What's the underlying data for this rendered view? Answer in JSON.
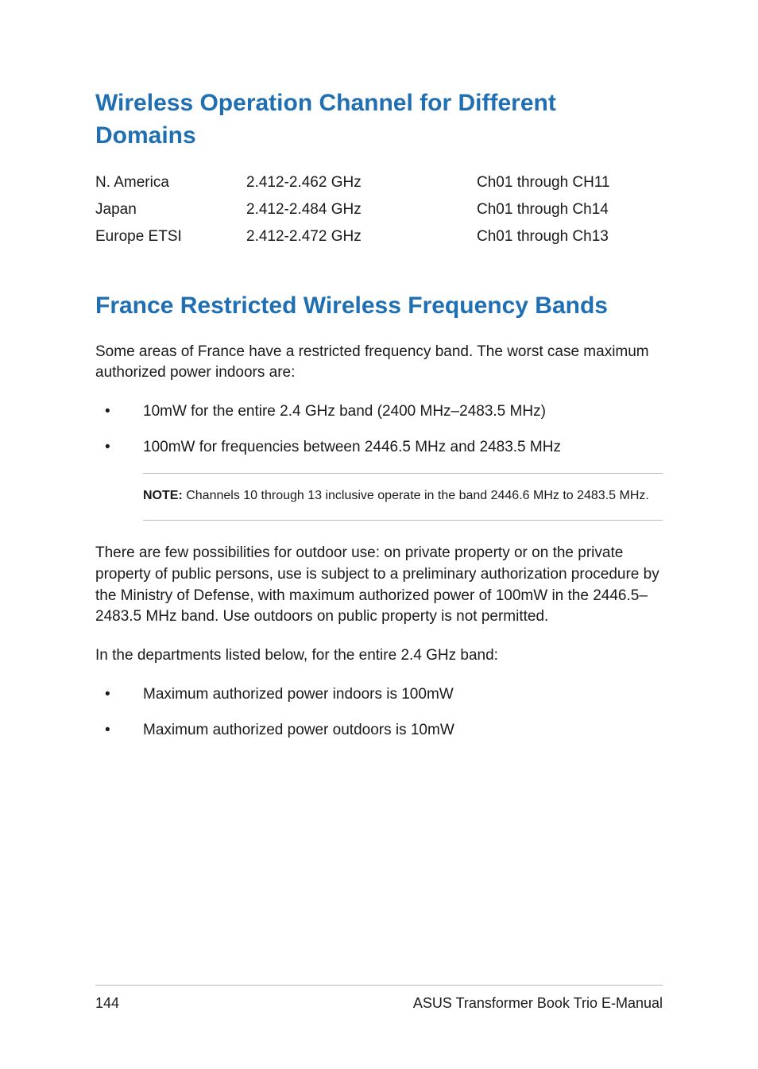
{
  "headings": {
    "h1a": "Wireless Operation Channel for Different Domains",
    "h1b": "France Restricted Wireless Frequency Bands"
  },
  "domainTable": {
    "rows": [
      {
        "region": "N. America",
        "freq": "2.412-2.462 GHz",
        "channels": "Ch01 through CH11"
      },
      {
        "region": "Japan",
        "freq": "2.412-2.484 GHz",
        "channels": "Ch01 through Ch14"
      },
      {
        "region": "Europe ETSI",
        "freq": "2.412-2.472 GHz",
        "channels": "Ch01 through Ch13"
      }
    ]
  },
  "france": {
    "intro": "Some areas of France have a restricted frequency band. The worst case maximum authorized power indoors are:",
    "bullets1": [
      "10mW for the entire 2.4 GHz band (2400 MHz–2483.5 MHz)",
      "100mW for frequencies between 2446.5 MHz and 2483.5 MHz"
    ],
    "noteLabel": "NOTE:",
    "noteText": " Channels 10 through 13 inclusive operate in the band 2446.6 MHz to 2483.5 MHz.",
    "para2": "There are few possibilities for outdoor use: on private property or on the private property of public persons, use is subject to a preliminary authorization procedure by the Ministry of Defense, with maximum authorized power of 100mW in the 2446.5–2483.5 MHz band. Use outdoors on public property is not permitted.",
    "para3": "In the departments listed below, for the entire 2.4 GHz band:",
    "bullets2": [
      "Maximum authorized power indoors is 100mW",
      "Maximum authorized power outdoors is 10mW"
    ]
  },
  "footer": {
    "pageNumber": "144",
    "docTitle": "ASUS Transformer Book Trio E-Manual"
  }
}
